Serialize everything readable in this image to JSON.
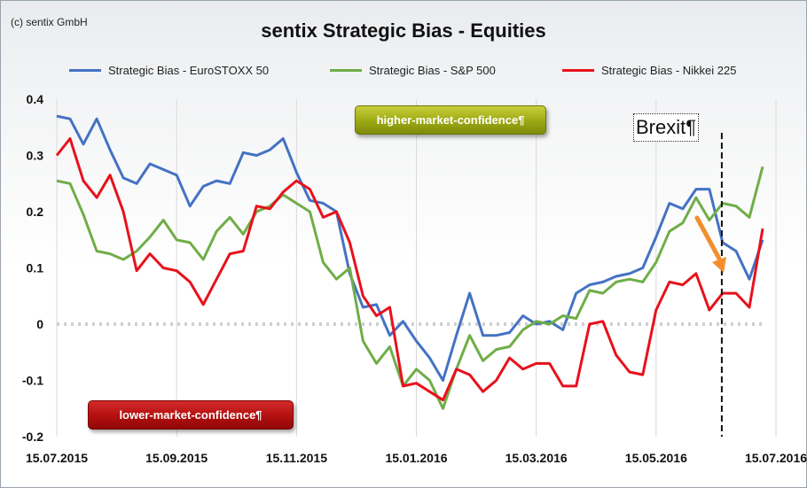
{
  "copyright": "(c) sentix GmbH",
  "chart_data": {
    "type": "line",
    "title": "sentix Strategic Bias - Equities",
    "xlabel": "",
    "ylabel": "",
    "ylim": [
      -0.2,
      0.4
    ],
    "yticks": [
      {
        "value": -0.2,
        "label": "-0.2"
      },
      {
        "value": -0.1,
        "label": "-0.1"
      },
      {
        "value": 0,
        "label": "0"
      },
      {
        "value": 0.1,
        "label": "0.1"
      },
      {
        "value": 0.2,
        "label": "0.2"
      },
      {
        "value": 0.3,
        "label": "0.3"
      },
      {
        "value": 0.4,
        "label": "0.4"
      }
    ],
    "x_tick_labels": [
      "15.07.2015",
      "15.09.2015",
      "15.11.2015",
      "15.01.2016",
      "15.03.2016",
      "15.05.2016",
      "15.07.2016"
    ],
    "x_tick_index": [
      0,
      9,
      18,
      27,
      36,
      45,
      54
    ],
    "grid": "vertical",
    "legend_position": "top",
    "series": [
      {
        "name": "Strategic Bias - EuroSTOXX 50",
        "color": "#4472c4",
        "values": [
          0.37,
          0.365,
          0.32,
          0.365,
          0.31,
          0.26,
          0.25,
          0.285,
          0.275,
          0.265,
          0.21,
          0.245,
          0.255,
          0.25,
          0.305,
          0.3,
          0.31,
          0.33,
          0.27,
          0.22,
          0.215,
          0.2,
          0.09,
          0.03,
          0.035,
          -0.02,
          0.005,
          -0.03,
          -0.06,
          -0.1,
          -0.02,
          0.055,
          -0.02,
          -0.02,
          -0.015,
          0.015,
          0.0,
          0.005,
          -0.01,
          0.055,
          0.07,
          0.075,
          0.085,
          0.09,
          0.1,
          0.155,
          0.215,
          0.205,
          0.24,
          0.24,
          0.145,
          0.13,
          0.08,
          0.15
        ]
      },
      {
        "name": "Strategic Bias - S&P 500",
        "color": "#70ad47",
        "values": [
          0.255,
          0.25,
          0.195,
          0.13,
          0.125,
          0.115,
          0.13,
          0.155,
          0.185,
          0.15,
          0.145,
          0.115,
          0.165,
          0.19,
          0.16,
          0.2,
          0.21,
          0.23,
          0.215,
          0.2,
          0.11,
          0.08,
          0.1,
          -0.03,
          -0.07,
          -0.04,
          -0.11,
          -0.08,
          -0.1,
          -0.15,
          -0.08,
          -0.02,
          -0.065,
          -0.045,
          -0.04,
          -0.01,
          0.005,
          0.0,
          0.015,
          0.01,
          0.06,
          0.055,
          0.075,
          0.08,
          0.075,
          0.11,
          0.165,
          0.18,
          0.225,
          0.185,
          0.215,
          0.21,
          0.19,
          0.28
        ]
      },
      {
        "name": "Strategic Bias - Nikkei 225",
        "color": "#e8111c",
        "values": [
          0.3,
          0.33,
          0.255,
          0.225,
          0.265,
          0.2,
          0.095,
          0.125,
          0.1,
          0.095,
          0.075,
          0.035,
          0.08,
          0.125,
          0.13,
          0.21,
          0.205,
          0.235,
          0.255,
          0.24,
          0.19,
          0.2,
          0.145,
          0.05,
          0.015,
          0.03,
          -0.11,
          -0.105,
          -0.12,
          -0.135,
          -0.08,
          -0.09,
          -0.12,
          -0.1,
          -0.06,
          -0.08,
          -0.07,
          -0.07,
          -0.11,
          -0.11,
          0.0,
          0.005,
          -0.055,
          -0.085,
          -0.09,
          0.025,
          0.075,
          0.07,
          0.09,
          0.025,
          0.055,
          0.055,
          0.03,
          0.17
        ]
      }
    ],
    "annotations": {
      "high_label": "higher-market-confidence¶",
      "low_label": "lower-market-confidence¶",
      "event_label": "Brexit¶",
      "event_index": 49,
      "arrow_color": "#f28e2b"
    }
  }
}
